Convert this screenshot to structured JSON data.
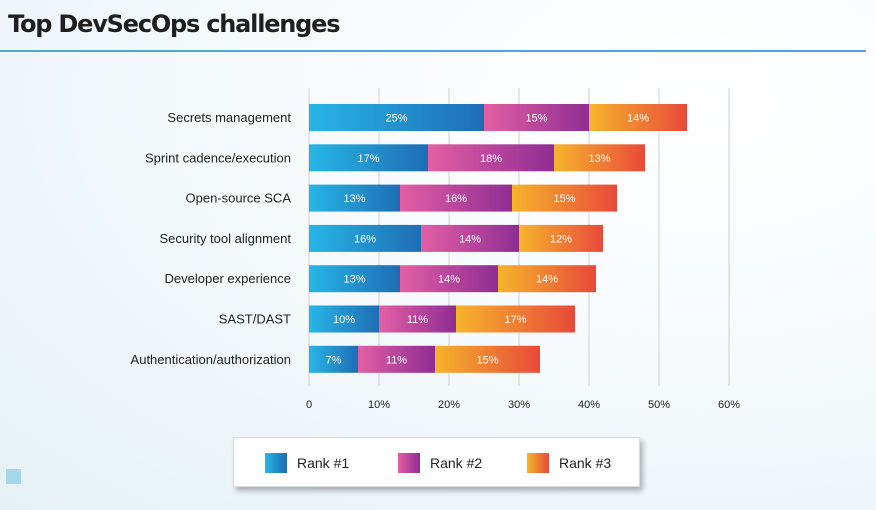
{
  "title": "Top DevSecOps challenges",
  "colors": {
    "rank1": [
      "#27b6e6",
      "#1f6db4"
    ],
    "rank2": [
      "#e35fa4",
      "#8f2d93"
    ],
    "rank3": [
      "#f6b42c",
      "#e8493a"
    ],
    "grid": "#cfcfcf",
    "title_rule": "#4aa9d8"
  },
  "chart_data": {
    "type": "bar",
    "orientation": "horizontal",
    "stacked": true,
    "categories": [
      "Secrets management",
      "Sprint cadence/execution",
      "Open-source SCA",
      "Security tool alignment",
      "Developer experience",
      "SAST/DAST",
      "Authentication/authorization"
    ],
    "series": [
      {
        "name": "Rank #1",
        "values": [
          25,
          17,
          13,
          16,
          13,
          10,
          7
        ]
      },
      {
        "name": "Rank #2",
        "values": [
          15,
          18,
          16,
          14,
          14,
          11,
          11
        ]
      },
      {
        "name": "Rank #3",
        "values": [
          14,
          13,
          15,
          12,
          14,
          17,
          15
        ]
      }
    ],
    "value_labels": [
      [
        "25%",
        "17%",
        "13%",
        "16%",
        "13%",
        "10%",
        "7%"
      ],
      [
        "15%",
        "18%",
        "16%",
        "14%",
        "14%",
        "11%",
        "11%"
      ],
      [
        "14%",
        "13%",
        "15%",
        "12%",
        "14%",
        "17%",
        "15%"
      ]
    ],
    "xlim": [
      0,
      60
    ],
    "xticks": [
      0,
      10,
      20,
      30,
      40,
      50,
      60
    ],
    "xtick_labels": [
      "0",
      "10%",
      "20%",
      "30%",
      "40%",
      "50%",
      "60%"
    ],
    "grid": true,
    "legend": {
      "position": "bottom",
      "items": [
        "Rank #1",
        "Rank #2",
        "Rank #3"
      ]
    }
  }
}
